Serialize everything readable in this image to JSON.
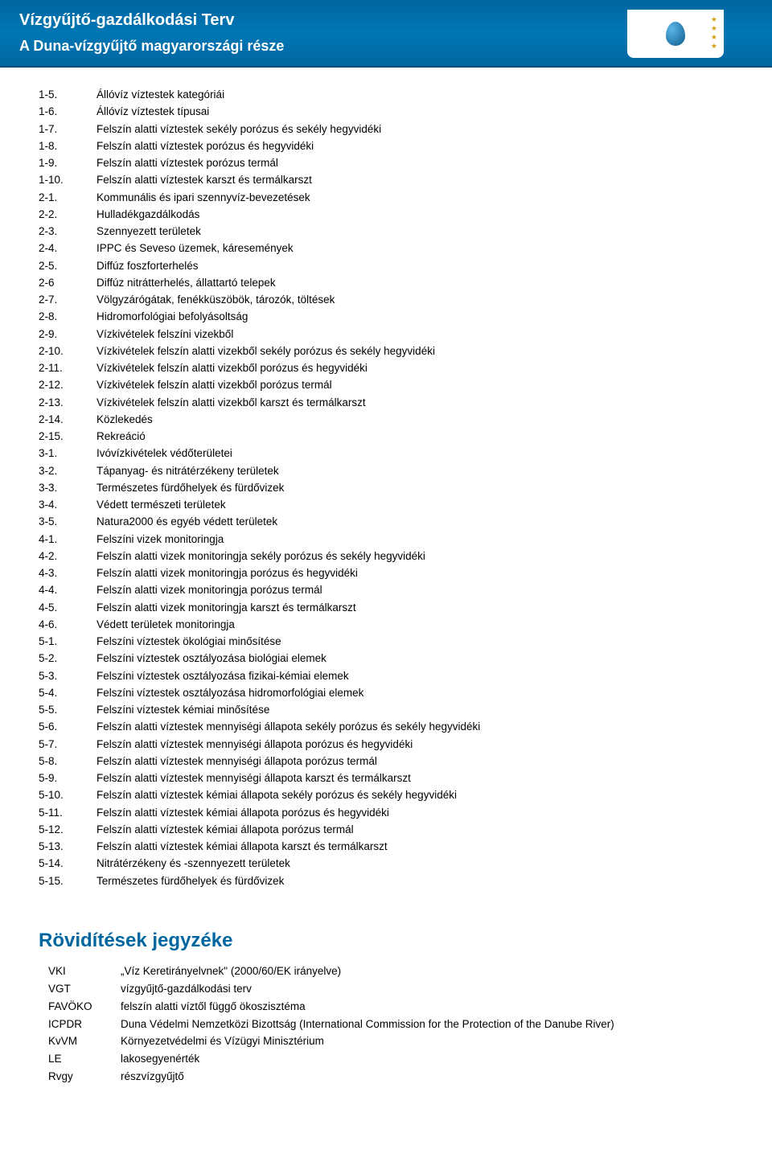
{
  "header": {
    "title": "Vízgyűjtő-gazdálkodási Terv",
    "subtitle": "A Duna-vízgyűjtő magyarországi része"
  },
  "colors": {
    "header_bg": "#0066a0",
    "header_text": "#ffffff",
    "body_text": "#000000",
    "section_title": "#0066a0",
    "page_bg": "#ffffff"
  },
  "typography": {
    "body_fontsize": 13.5,
    "header_title_fontsize": 20,
    "header_subtitle_fontsize": 18,
    "section_title_fontsize": 24,
    "font_family": "Arial"
  },
  "list_items": [
    {
      "id": "1-5.",
      "desc": "Állóvíz víztestek kategóriái"
    },
    {
      "id": "1-6.",
      "desc": "Állóvíz víztestek típusai"
    },
    {
      "id": "1-7.",
      "desc": "Felszín alatti víztestek sekély porózus és sekély hegyvidéki"
    },
    {
      "id": "1-8.",
      "desc": "Felszín alatti víztestek porózus és hegyvidéki"
    },
    {
      "id": "1-9.",
      "desc": "Felszín alatti víztestek porózus termál"
    },
    {
      "id": "1-10.",
      "desc": "Felszín alatti víztestek karszt és termálkarszt"
    },
    {
      "id": "2-1.",
      "desc": "Kommunális és ipari szennyvíz-bevezetések"
    },
    {
      "id": "2-2.",
      "desc": "Hulladékgazdálkodás"
    },
    {
      "id": "2-3.",
      "desc": "Szennyezett területek"
    },
    {
      "id": "2-4.",
      "desc": "IPPC és Seveso üzemek, káresemények"
    },
    {
      "id": "2-5.",
      "desc": "Diffúz foszforterhelés"
    },
    {
      "id": "2-6",
      "desc": "Diffúz nitrátterhelés, állattartó telepek"
    },
    {
      "id": "2-7.",
      "desc": "Völgyzárógátak, fenékküszöbök, tározók, töltések"
    },
    {
      "id": "2-8.",
      "desc": "Hidromorfológiai befolyásoltság"
    },
    {
      "id": "2-9.",
      "desc": "Vízkivételek felszíni vizekből"
    },
    {
      "id": "2-10.",
      "desc": "Vízkivételek felszín alatti vizekből sekély porózus és sekély hegyvidéki"
    },
    {
      "id": "2-11.",
      "desc": "Vízkivételek felszín alatti vizekből porózus és hegyvidéki"
    },
    {
      "id": "2-12.",
      "desc": "Vízkivételek felszín alatti vizekből porózus termál"
    },
    {
      "id": "2-13.",
      "desc": "Vízkivételek felszín alatti vizekből karszt és termálkarszt"
    },
    {
      "id": "2-14.",
      "desc": "Közlekedés"
    },
    {
      "id": "2-15.",
      "desc": "Rekreáció"
    },
    {
      "id": "3-1.",
      "desc": "Ivóvízkivételek védőterületei"
    },
    {
      "id": "3-2.",
      "desc": "Tápanyag- és nitrátérzékeny területek"
    },
    {
      "id": "3-3.",
      "desc": "Természetes fürdőhelyek és fürdővizek"
    },
    {
      "id": "3-4.",
      "desc": "Védett természeti területek"
    },
    {
      "id": "3-5.",
      "desc": "Natura2000 és egyéb védett területek"
    },
    {
      "id": "4-1.",
      "desc": "Felszíni vizek monitoringja"
    },
    {
      "id": "4-2.",
      "desc": "Felszín alatti vizek monitoringja sekély porózus és sekély hegyvidéki"
    },
    {
      "id": "4-3.",
      "desc": "Felszín alatti vizek monitoringja porózus és hegyvidéki"
    },
    {
      "id": "4-4.",
      "desc": "Felszín alatti vizek monitoringja porózus termál"
    },
    {
      "id": "4-5.",
      "desc": "Felszín alatti vizek monitoringja karszt és termálkarszt"
    },
    {
      "id": "4-6.",
      "desc": "Védett területek monitoringja"
    },
    {
      "id": "5-1.",
      "desc": "Felszíni víztestek ökológiai minősítése"
    },
    {
      "id": "5-2.",
      "desc": "Felszíni víztestek osztályozása biológiai elemek"
    },
    {
      "id": "5-3.",
      "desc": "Felszíni víztestek osztályozása fizikai-kémiai elemek"
    },
    {
      "id": "5-4.",
      "desc": "Felszíni víztestek osztályozása hidromorfológiai elemek"
    },
    {
      "id": "5-5.",
      "desc": "Felszíni víztestek kémiai minősítése"
    },
    {
      "id": "5-6.",
      "desc": "Felszín alatti víztestek mennyiségi állapota sekély porózus és sekély hegyvidéki"
    },
    {
      "id": "5-7.",
      "desc": "Felszín alatti víztestek mennyiségi állapota porózus és hegyvidéki"
    },
    {
      "id": "5-8.",
      "desc": "Felszín alatti víztestek mennyiségi állapota porózus termál"
    },
    {
      "id": "5-9.",
      "desc": "Felszín alatti víztestek mennyiségi állapota karszt és termálkarszt"
    },
    {
      "id": "5-10.",
      "desc": "Felszín alatti víztestek kémiai állapota sekély porózus és sekély hegyvidéki"
    },
    {
      "id": "5-11.",
      "desc": "Felszín alatti víztestek kémiai állapota porózus és hegyvidéki"
    },
    {
      "id": "5-12.",
      "desc": "Felszín alatti víztestek kémiai állapota porózus termál"
    },
    {
      "id": "5-13.",
      "desc": "Felszín alatti víztestek kémiai állapota karszt és termálkarszt"
    },
    {
      "id": "5-14.",
      "desc": "Nitrátérzékeny és -szennyezett területek"
    },
    {
      "id": "5-15.",
      "desc": "Természetes fürdőhelyek és fürdővizek"
    }
  ],
  "abbrev_section": {
    "title": "Rövidítések jegyzéke",
    "items": [
      {
        "key": "VKI",
        "val": "„Víz Keretirányelvnek\" (2000/60/EK irányelve)"
      },
      {
        "key": "VGT",
        "val": "vízgyűjtő-gazdálkodási terv"
      },
      {
        "key": "FAVÖKO",
        "val": "felszín alatti víztől függő ökoszisztéma"
      },
      {
        "key": "ICPDR",
        "val": "Duna Védelmi Nemzetközi Bizottság (International Commission for the Protection of the Danube River)"
      },
      {
        "key": "KvVM",
        "val": "Környezetvédelmi és Vízügyi Minisztérium"
      },
      {
        "key": "LE",
        "val": "lakosegyenérték"
      },
      {
        "key": "Rvgy",
        "val": "részvízgyűjtő"
      }
    ]
  }
}
